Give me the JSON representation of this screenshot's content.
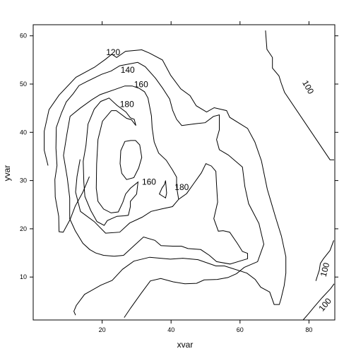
{
  "chart_data": {
    "type": "contour",
    "xlabel": "xvar",
    "ylabel": "yvar",
    "xlim": [
      0,
      87.5
    ],
    "ylim": [
      1.1,
      62.3
    ],
    "xticks": [
      20,
      40,
      60,
      80
    ],
    "yticks": [
      10,
      20,
      30,
      40,
      50,
      60
    ],
    "grid": false,
    "contours": [
      {
        "level": "100",
        "points": [
          [
            67.4,
            61.1
          ],
          [
            67.8,
            57.2
          ],
          [
            69.4,
            55.5
          ],
          [
            69.4,
            53.3
          ],
          [
            71.3,
            51.7
          ],
          [
            71.9,
            50.3
          ],
          [
            72.9,
            48.3
          ],
          [
            86.1,
            34.3
          ],
          [
            87.3,
            34.3
          ]
        ]
      },
      {
        "level": "120",
        "points": [
          [
            4.3,
            33.1
          ],
          [
            3.2,
            36.3
          ],
          [
            3.2,
            40.2
          ],
          [
            4.6,
            44.7
          ],
          [
            7.5,
            47.7
          ],
          [
            12.4,
            51.4
          ],
          [
            17.8,
            53.5
          ],
          [
            20.9,
            55.1
          ],
          [
            22.8,
            56.2
          ],
          [
            24.2,
            55.5
          ],
          [
            26.8,
            56.8
          ],
          [
            31.5,
            57.1
          ],
          [
            33.8,
            56.4
          ],
          [
            37.5,
            55.0
          ],
          [
            39.9,
            51.8
          ],
          [
            42.8,
            49.0
          ],
          [
            45.5,
            47.6
          ],
          [
            47.3,
            45.5
          ],
          [
            50.3,
            44.2
          ],
          [
            52.5,
            45.1
          ],
          [
            56.1,
            44.5
          ],
          [
            57.0,
            43.1
          ],
          [
            62.2,
            40.8
          ],
          [
            64.3,
            38.0
          ],
          [
            66.2,
            34.1
          ],
          [
            67.9,
            28.2
          ],
          [
            70.3,
            22.4
          ],
          [
            72.0,
            18.5
          ],
          [
            73.3,
            14.2
          ],
          [
            73.3,
            10.8
          ],
          [
            72.8,
            8.2
          ],
          [
            71.9,
            5.5
          ],
          [
            71.4,
            4.3
          ],
          [
            69.9,
            4.3
          ],
          [
            68.6,
            6.9
          ],
          [
            66.0,
            7.9
          ],
          [
            64.4,
            9.5
          ],
          [
            62.0,
            10.8
          ],
          [
            55.5,
            12.3
          ],
          [
            53.0,
            12.3
          ],
          [
            47.8,
            13.6
          ],
          [
            43.4,
            13.9
          ],
          [
            39.8,
            13.7
          ],
          [
            33.8,
            14.1
          ],
          [
            29.2,
            13.3
          ],
          [
            25.9,
            11.6
          ],
          [
            22.9,
            9.3
          ],
          [
            19.6,
            8.3
          ],
          [
            14.9,
            6.4
          ],
          [
            12.5,
            4.1
          ],
          [
            11.8,
            2.9
          ],
          [
            12.3,
            2.1
          ]
        ]
      },
      {
        "level": "140",
        "points": [
          [
            16.3,
            30.8
          ],
          [
            14.4,
            27.6
          ],
          [
            12.2,
            24.7
          ],
          [
            10.7,
            21.9
          ],
          [
            8.7,
            19.3
          ],
          [
            7.5,
            19.4
          ],
          [
            7.4,
            22.6
          ],
          [
            6.4,
            26.6
          ],
          [
            6.3,
            30.2
          ],
          [
            6.9,
            33.1
          ],
          [
            6.6,
            36.7
          ],
          [
            6.7,
            41.0
          ],
          [
            8.2,
            44.0
          ],
          [
            9.6,
            46.3
          ],
          [
            11.6,
            48.0
          ],
          [
            13.3,
            49.7
          ],
          [
            15.5,
            50.5
          ],
          [
            19.8,
            52.0
          ],
          [
            22.6,
            52.7
          ],
          [
            25.1,
            53.8
          ],
          [
            30.3,
            54.5
          ],
          [
            32.5,
            53.6
          ],
          [
            35.5,
            51.2
          ],
          [
            37.6,
            49.1
          ],
          [
            39.6,
            46.9
          ],
          [
            40.5,
            44.5
          ],
          [
            41.6,
            42.7
          ],
          [
            43.1,
            41.4
          ],
          [
            47.4,
            41.8
          ],
          [
            49.9,
            42.0
          ],
          [
            52.3,
            43.3
          ],
          [
            54.0,
            43.6
          ],
          [
            54.0,
            40.5
          ],
          [
            53.2,
            38.5
          ],
          [
            54.0,
            36.4
          ],
          [
            56.6,
            35.3
          ],
          [
            60.7,
            32.8
          ],
          [
            61.4,
            28.8
          ],
          [
            62.5,
            25.2
          ],
          [
            65.5,
            21.1
          ],
          [
            66.9,
            16.8
          ],
          [
            65.1,
            13.2
          ],
          [
            61.2,
            12.0
          ],
          [
            59.0,
            10.7
          ],
          [
            56.5,
            9.9
          ],
          [
            53.4,
            9.5
          ],
          [
            49.6,
            9.4
          ],
          [
            47.4,
            8.7
          ],
          [
            44.0,
            8.6
          ],
          [
            40.6,
            9.0
          ],
          [
            37.0,
            9.7
          ],
          [
            34.0,
            9.2
          ],
          [
            31.3,
            6.6
          ],
          [
            28.3,
            3.6
          ],
          [
            26.4,
            1.6
          ]
        ]
      },
      {
        "level": "160",
        "points": [
          [
            13.6,
            34.4
          ],
          [
            12.7,
            30.8
          ],
          [
            12.3,
            27.6
          ],
          [
            13.7,
            23.6
          ],
          [
            17.7,
            21.5
          ],
          [
            21.0,
            19.1
          ],
          [
            25.1,
            19.3
          ],
          [
            28.0,
            21.2
          ],
          [
            31.6,
            22.4
          ],
          [
            34.2,
            23.6
          ],
          [
            37.2,
            24.1
          ],
          [
            40.4,
            24.6
          ],
          [
            42.2,
            26.1
          ],
          [
            44.5,
            27.3
          ],
          [
            46.7,
            29.5
          ],
          [
            48.8,
            31.6
          ],
          [
            50.1,
            33.5
          ],
          [
            51.7,
            33.0
          ],
          [
            53.0,
            31.9
          ],
          [
            53.2,
            29.1
          ],
          [
            53.5,
            25.5
          ],
          [
            52.4,
            22.1
          ],
          [
            53.7,
            19.5
          ],
          [
            55.1,
            19.6
          ],
          [
            57.0,
            19.3
          ],
          [
            59.2,
            17.0
          ],
          [
            60.7,
            15.3
          ],
          [
            62.2,
            14.9
          ],
          [
            62.2,
            13.8
          ],
          [
            57.1,
            12.7
          ],
          [
            53.2,
            13.2
          ],
          [
            51.1,
            14.5
          ],
          [
            48.6,
            15.7
          ],
          [
            44.9,
            15.9
          ],
          [
            43.0,
            16.4
          ],
          [
            40.5,
            16.4
          ],
          [
            37.1,
            16.5
          ],
          [
            35.3,
            17.6
          ],
          [
            32.0,
            18.3
          ],
          [
            28.8,
            16.2
          ],
          [
            26.2,
            14.5
          ],
          [
            23.5,
            14.3
          ],
          [
            20.4,
            14.5
          ],
          [
            18.1,
            15.0
          ],
          [
            16.4,
            15.7
          ],
          [
            14.4,
            17.0
          ],
          [
            12.2,
            19.6
          ],
          [
            10.6,
            22.1
          ],
          [
            10.6,
            26.4
          ],
          [
            9.9,
            30.5
          ],
          [
            8.8,
            35.2
          ],
          [
            9.8,
            39.7
          ],
          [
            10.7,
            43.3
          ],
          [
            13.6,
            45.0
          ],
          [
            17.1,
            46.8
          ],
          [
            19.4,
            47.8
          ],
          [
            23.4,
            48.8
          ],
          [
            26.6,
            49.6
          ],
          [
            28.7,
            49.6
          ],
          [
            30.8,
            49.1
          ],
          [
            32.3,
            48.4
          ],
          [
            33.3,
            47.1
          ],
          [
            34.3,
            43.4
          ],
          [
            34.5,
            40.9
          ],
          [
            35.1,
            38.0
          ],
          [
            36.4,
            35.7
          ],
          [
            38.6,
            34.2
          ],
          [
            40.4,
            32.2
          ],
          [
            41.6,
            30.7
          ],
          [
            41.6,
            28.7
          ],
          [
            42.2,
            26.1
          ]
        ]
      },
      {
        "level": "180",
        "points": [
          [
            22.7,
            44.5
          ],
          [
            20.1,
            42.3
          ],
          [
            18.8,
            38.5
          ],
          [
            18.4,
            33.4
          ],
          [
            18.3,
            28.4
          ],
          [
            18.8,
            25.7
          ],
          [
            20.4,
            24.1
          ],
          [
            22.6,
            23.3
          ],
          [
            24.7,
            23.5
          ],
          [
            26.0,
            25.5
          ],
          [
            26.8,
            27.2
          ],
          [
            28.2,
            28.4
          ],
          [
            30.4,
            29.7
          ],
          [
            30.0,
            27.2
          ],
          [
            28.2,
            25.7
          ],
          [
            28.2,
            24.6
          ],
          [
            27.6,
            22.8
          ],
          [
            26.5,
            22.7
          ],
          [
            24.3,
            22.6
          ],
          [
            21.5,
            21.7
          ],
          [
            20.6,
            20.7
          ],
          [
            18.5,
            21.5
          ],
          [
            16.7,
            23.8
          ],
          [
            15.0,
            26.7
          ],
          [
            14.7,
            29.6
          ],
          [
            14.5,
            34.0
          ],
          [
            15.3,
            37.3
          ],
          [
            15.9,
            41.7
          ],
          [
            17.7,
            44.8
          ],
          [
            19.6,
            46.4
          ],
          [
            22.0,
            47.1
          ],
          [
            24.3,
            45.6
          ],
          [
            26.9,
            44.2
          ],
          [
            28.2,
            43.0
          ],
          [
            29.3,
            42.7
          ],
          [
            29.8,
            41.4
          ],
          [
            28.5,
            42.6
          ],
          [
            27.1,
            42.9
          ],
          [
            24.1,
            44.5
          ],
          [
            22.7,
            44.5
          ]
        ]
      },
      {
        "level": "160",
        "points": [
          [
            28.3,
            38.3
          ],
          [
            26.6,
            38.1
          ],
          [
            25.4,
            36.2
          ],
          [
            25.2,
            33.5
          ],
          [
            25.7,
            31.5
          ],
          [
            27.1,
            30.2
          ],
          [
            29.2,
            30.6
          ],
          [
            30.6,
            32.6
          ],
          [
            31.5,
            34.8
          ],
          [
            30.9,
            37.4
          ],
          [
            29.7,
            38.3
          ],
          [
            28.3,
            38.3
          ]
        ]
      },
      {
        "level": "180",
        "points": [
          [
            38.4,
            30.0
          ],
          [
            38.7,
            27.4
          ],
          [
            38.4,
            26.4
          ],
          [
            37.5,
            26.8
          ],
          [
            36.6,
            27.2
          ],
          [
            37.4,
            28.5
          ],
          [
            38.1,
            29.2
          ],
          [
            38.4,
            30.0
          ]
        ]
      },
      {
        "level": "100",
        "points": [
          [
            87.2,
            17.6
          ],
          [
            86.1,
            15.5
          ],
          [
            84.2,
            13.8
          ],
          [
            83.3,
            12.8
          ],
          [
            83.0,
            11.4
          ],
          [
            82.4,
            10.1
          ],
          [
            82.0,
            9.2
          ]
        ]
      },
      {
        "level": "100",
        "points": [
          [
            78.3,
            1.1
          ],
          [
            79.9,
            2.4
          ],
          [
            81.4,
            3.7
          ],
          [
            83.8,
            5.7
          ],
          [
            86.3,
            7.6
          ],
          [
            87.3,
            8.6
          ]
        ]
      }
    ],
    "labels": [
      {
        "text": "120",
        "x": 23.2,
        "y": 56.5,
        "rotate": 0
      },
      {
        "text": "140",
        "x": 27.4,
        "y": 52.8,
        "rotate": 0
      },
      {
        "text": "160",
        "x": 31.3,
        "y": 49.8,
        "rotate": 0
      },
      {
        "text": "180",
        "x": 27.2,
        "y": 45.7,
        "rotate": 0
      },
      {
        "text": "160",
        "x": 33.6,
        "y": 29.6,
        "rotate": 0
      },
      {
        "text": "180",
        "x": 43.1,
        "y": 28.5,
        "rotate": 0
      },
      {
        "text": "100",
        "x": 79.6,
        "y": 49.3,
        "rotate": 60
      },
      {
        "text": "100",
        "x": 84.8,
        "y": 11.5,
        "rotate": -75
      },
      {
        "text": "100",
        "x": 84.8,
        "y": 4.2,
        "rotate": -50
      }
    ]
  }
}
